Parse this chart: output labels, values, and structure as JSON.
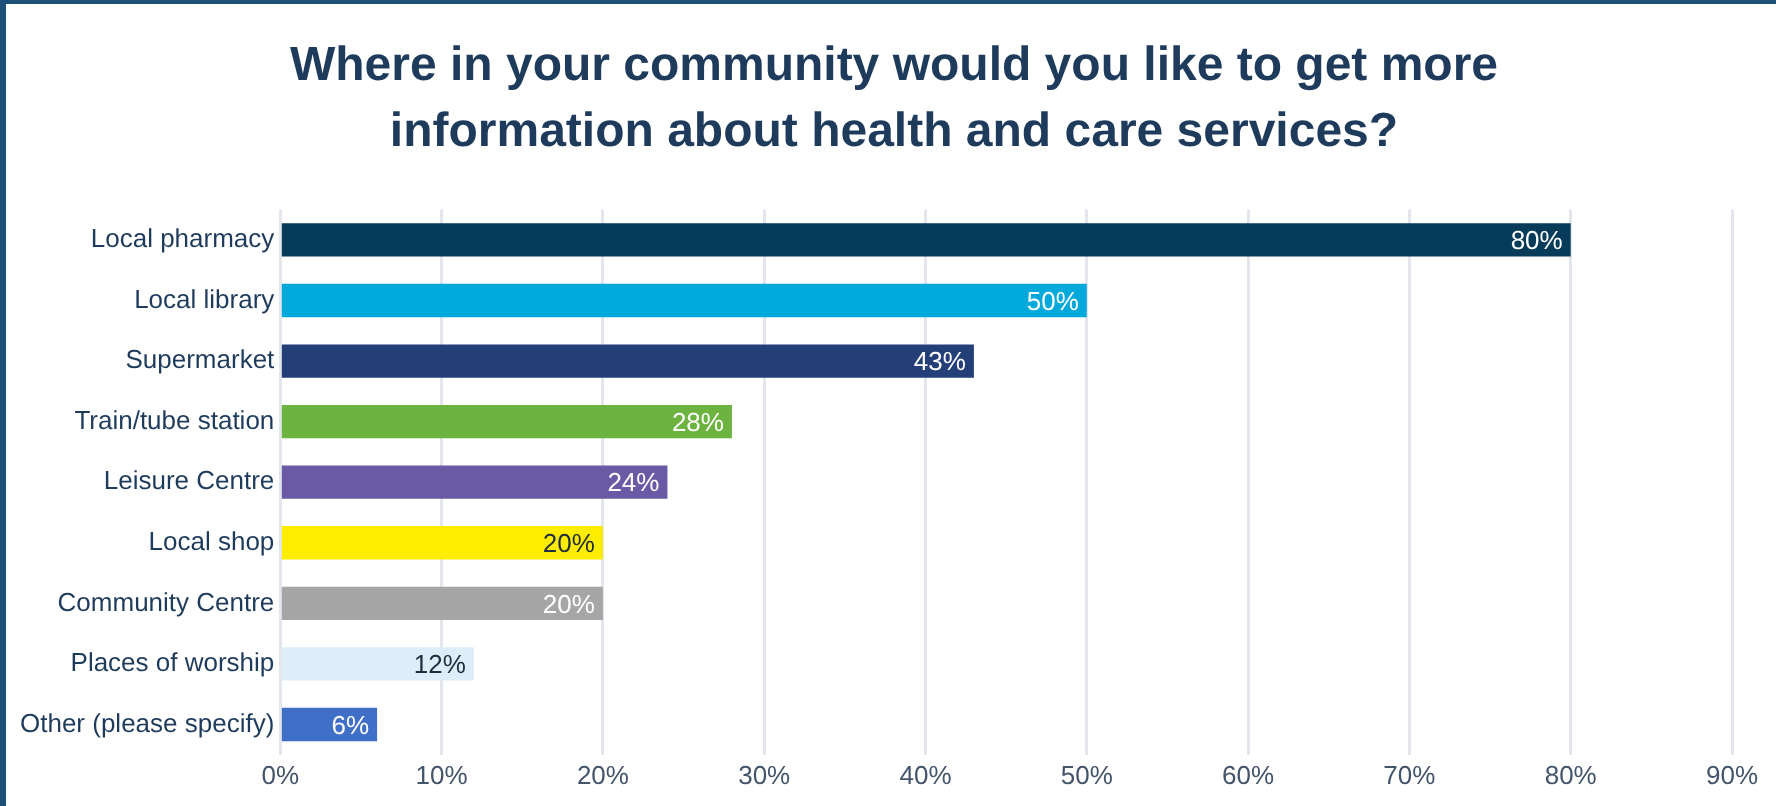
{
  "chart_data": {
    "type": "bar",
    "orientation": "horizontal",
    "title": "Where in your community would you like to get more information about health and care services?",
    "categories": [
      "Local pharmacy",
      "Local library",
      "Supermarket",
      "Train/tube station",
      "Leisure Centre",
      "Local shop",
      "Community Centre",
      "Places of worship",
      "Other (please specify)"
    ],
    "values": [
      80,
      50,
      43,
      28,
      24,
      20,
      20,
      12,
      6
    ],
    "colors": [
      "#073b5a",
      "#00a9db",
      "#243f78",
      "#6db33f",
      "#6a5aa6",
      "#ffed00",
      "#a6a6a6",
      "#ddeef8",
      "#3f6fc6"
    ],
    "value_labels": [
      "80%",
      "50%",
      "43%",
      "28%",
      "24%",
      "20%",
      "20%",
      "12%",
      "6%"
    ],
    "xlim": [
      0,
      90
    ],
    "xticks": [
      {
        "value": 0,
        "label": "0%"
      },
      {
        "value": 10,
        "label": "10%"
      },
      {
        "value": 20,
        "label": "20%"
      },
      {
        "value": 30,
        "label": "30%"
      },
      {
        "value": 40,
        "label": "40%"
      },
      {
        "value": 50,
        "label": "50%"
      },
      {
        "value": 60,
        "label": "60%"
      },
      {
        "value": 70,
        "label": "70%"
      },
      {
        "value": 80,
        "label": "80%"
      },
      {
        "value": 90,
        "label": "90%"
      }
    ],
    "grid": "x",
    "legend": false
  }
}
